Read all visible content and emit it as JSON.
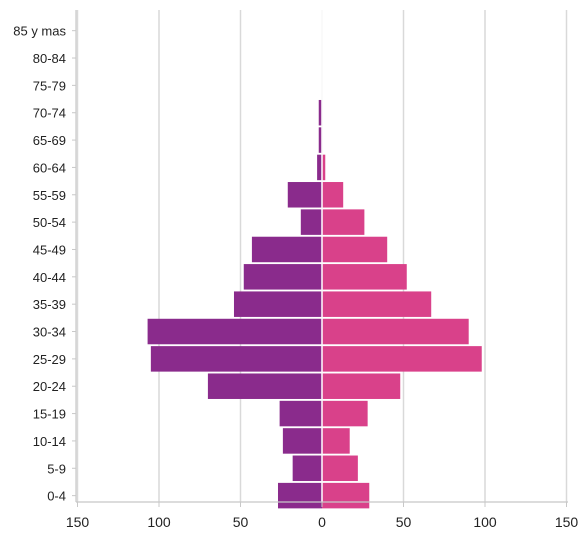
{
  "chart_data": {
    "type": "bar",
    "orientation": "horizontal",
    "layout": "population-pyramid",
    "categories": [
      "85 y mas",
      "80-84",
      "75-79",
      "70-74",
      "65-69",
      "60-64",
      "55-59",
      "50-54",
      "45-49",
      "40-44",
      "35-39",
      "30-34",
      "25-29",
      "20-24",
      "15-19",
      "10-14",
      "5-9",
      "0-4"
    ],
    "series": [
      {
        "side": "left",
        "color": "#8a2b8c",
        "values": [
          0,
          0,
          0,
          2,
          2,
          3,
          21,
          13,
          43,
          48,
          54,
          107,
          105,
          70,
          26,
          24,
          18,
          27
        ]
      },
      {
        "side": "right",
        "color": "#d9418a",
        "values": [
          0,
          0,
          0,
          0,
          0,
          2,
          13,
          26,
          40,
          52,
          67,
          90,
          98,
          48,
          28,
          17,
          22,
          29
        ]
      }
    ],
    "xticks": [
      "150",
      "100",
      "50",
      "0",
      "50",
      "100",
      "150"
    ],
    "xlim": [
      -150,
      150
    ],
    "grid": true,
    "grid_color": "#d9d9d9",
    "axis_color": "#c8c8c8"
  }
}
